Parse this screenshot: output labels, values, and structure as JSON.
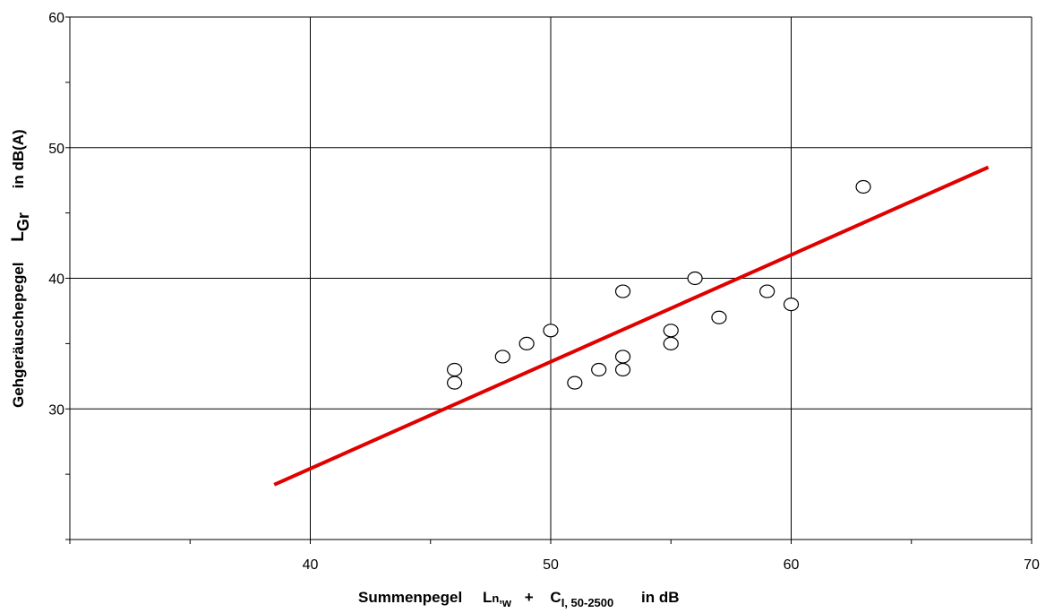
{
  "chart_data": {
    "type": "scatter",
    "title": "",
    "xlabel": {
      "main": "Summenpegel",
      "l_base": "L",
      "l_sub": "n,",
      "l_sub2": "w",
      "plus": "+",
      "c_base": "C",
      "c_sub": "I, 50-2500",
      "unit": "in dB"
    },
    "ylabel": {
      "main": "Gehgeräuschepegel",
      "l_base": "L",
      "l_sub": "Gr",
      "unit": "in dB(A)"
    },
    "xlim": [
      30,
      70
    ],
    "ylim": [
      20,
      60
    ],
    "x_major_ticks": [
      40,
      50,
      60,
      70
    ],
    "y_major_ticks": [
      30,
      40,
      50,
      60
    ],
    "x_tick_labels": [
      "40",
      "50",
      "60",
      "70"
    ],
    "y_tick_labels": [
      "30",
      "40",
      "50",
      "60"
    ],
    "grid": true,
    "points": [
      {
        "x": 46,
        "y": 33
      },
      {
        "x": 46,
        "y": 32
      },
      {
        "x": 48,
        "y": 34
      },
      {
        "x": 49,
        "y": 35
      },
      {
        "x": 50,
        "y": 36
      },
      {
        "x": 51,
        "y": 32
      },
      {
        "x": 52,
        "y": 33
      },
      {
        "x": 53,
        "y": 39
      },
      {
        "x": 53,
        "y": 34
      },
      {
        "x": 53,
        "y": 33
      },
      {
        "x": 55,
        "y": 36
      },
      {
        "x": 55,
        "y": 35
      },
      {
        "x": 56,
        "y": 40
      },
      {
        "x": 57,
        "y": 37
      },
      {
        "x": 59,
        "y": 39
      },
      {
        "x": 60,
        "y": 38
      },
      {
        "x": 63,
        "y": 47
      }
    ],
    "regression_line": {
      "color": "#e00000",
      "x": [
        38.5,
        68.2
      ],
      "y": [
        24.2,
        48.5
      ]
    },
    "marker": {
      "shape": "open-circle",
      "color": "#000000"
    }
  }
}
